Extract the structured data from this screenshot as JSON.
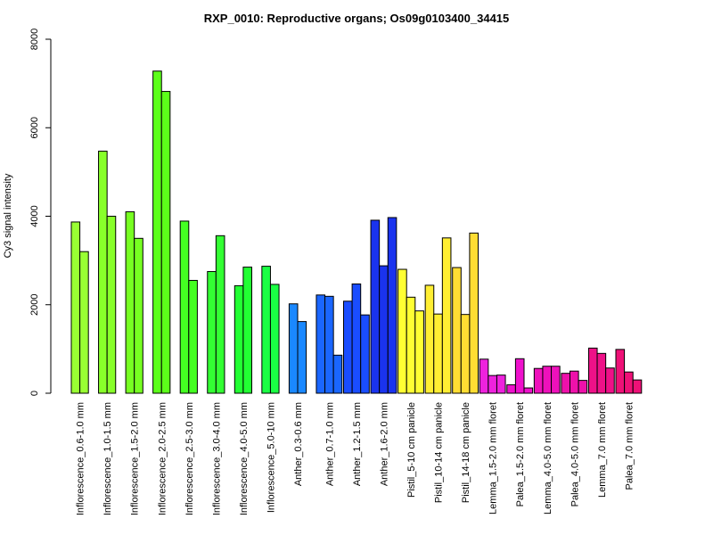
{
  "chart_data": {
    "type": "bar",
    "title": "RXP_0010: Reproductive organs; Os09g0103400_34415",
    "xlabel": "",
    "ylabel": "Cy3 signal intensity",
    "ylim": [
      0,
      8000
    ],
    "yticks": [
      0,
      2000,
      4000,
      6000,
      8000
    ],
    "grid": false,
    "groups": [
      {
        "label": "Inflorescence_0.6-1.0 mm",
        "color": "#99ff33",
        "values": [
          3870,
          3200
        ]
      },
      {
        "label": "Inflorescence_1.0-1.5 mm",
        "color": "#88ff2a",
        "values": [
          5470,
          4000
        ]
      },
      {
        "label": "Inflorescence_1.5-2.0 mm",
        "color": "#77ff22",
        "values": [
          4100,
          3500
        ]
      },
      {
        "label": "Inflorescence_2.0-2.5 mm",
        "color": "#5cff1a",
        "values": [
          7280,
          6820
        ]
      },
      {
        "label": "Inflorescence_2.5-3.0 mm",
        "color": "#44ff22",
        "values": [
          3890,
          2550
        ]
      },
      {
        "label": "Inflorescence_3.0-4.0 mm",
        "color": "#33ff33",
        "values": [
          2750,
          3560
        ]
      },
      {
        "label": "Inflorescence_4.0-5.0 mm",
        "color": "#22ff33",
        "values": [
          2430,
          2850
        ]
      },
      {
        "label": "Inflorescence_5.0-10 mm",
        "color": "#1aff44",
        "values": [
          2870,
          2460
        ]
      },
      {
        "label": "Anther_0.3-0.6 mm",
        "color": "#1a88ff",
        "values": [
          2020,
          1620
        ]
      },
      {
        "label": "Anther_0.7-1.0 mm",
        "color": "#1a66ff",
        "values": [
          2220,
          2190,
          860
        ]
      },
      {
        "label": "Anther_1.2-1.5 mm",
        "color": "#1a4dff",
        "values": [
          2080,
          2470,
          1770
        ]
      },
      {
        "label": "Anther_1.6-2.0 mm",
        "color": "#1a33ee",
        "values": [
          3910,
          2880,
          3970
        ]
      },
      {
        "label": "Pistil_5-10 cm panicle",
        "color": "#ffff33",
        "values": [
          2800,
          2170,
          1860
        ]
      },
      {
        "label": "Pistil_10-14 cm panicle",
        "color": "#ffee33",
        "values": [
          2440,
          1790,
          3510
        ]
      },
      {
        "label": "Pistil_14-18 cm panicle",
        "color": "#ffdd33",
        "values": [
          2840,
          1780,
          3620
        ]
      },
      {
        "label": "Lemma_1.5-2.0 mm floret",
        "color": "#ee22dd",
        "values": [
          770,
          400,
          410
        ]
      },
      {
        "label": "Palea_1.5-2.0 mm floret",
        "color": "#ee11cc",
        "values": [
          190,
          780,
          120
        ]
      },
      {
        "label": "Lemma_4.0-5.0 mm floret",
        "color": "#ee11bb",
        "values": [
          560,
          610,
          610
        ]
      },
      {
        "label": "Palea_4.0-5.0 mm floret",
        "color": "#ee11aa",
        "values": [
          450,
          500,
          290
        ]
      },
      {
        "label": "Lemma_7.0 mm floret",
        "color": "#ee1188",
        "values": [
          1020,
          900,
          570
        ]
      },
      {
        "label": "Palea_7.0 mm floret",
        "color": "#ee1177",
        "values": [
          990,
          480,
          300
        ]
      }
    ]
  }
}
